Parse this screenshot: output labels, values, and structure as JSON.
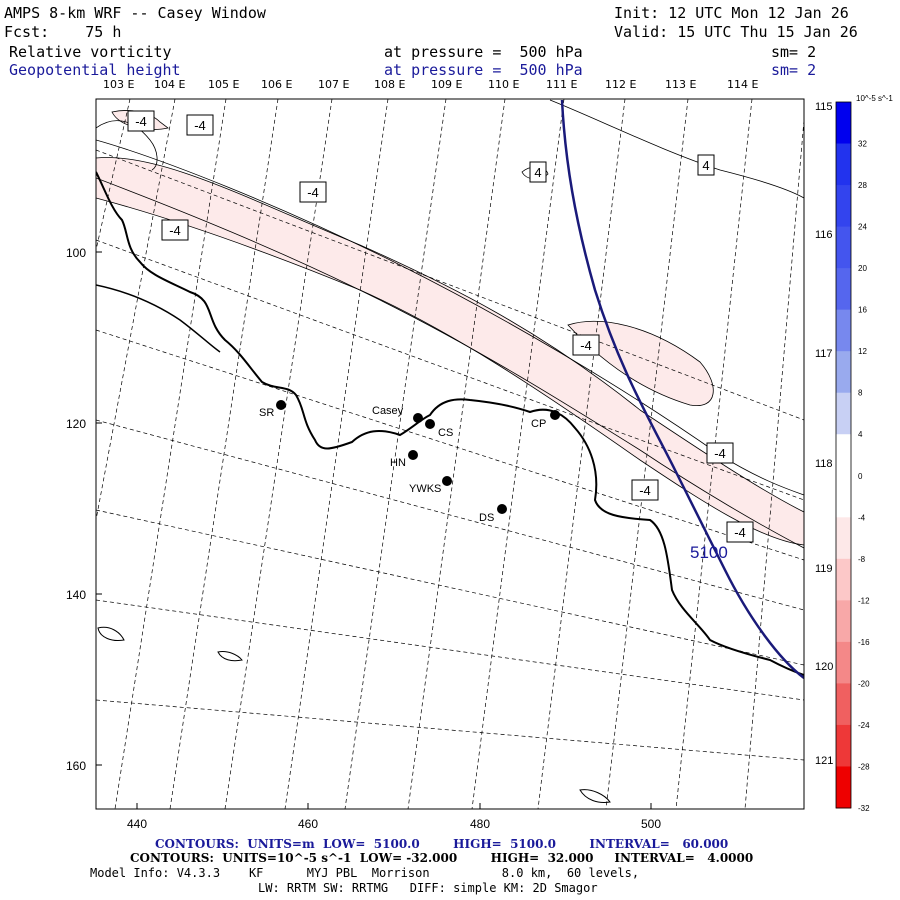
{
  "header": {
    "title": "AMPS 8-km WRF -- Casey Window",
    "init": "Init: 12 UTC Mon 12 Jan 26",
    "forecast": "Fcst:    75 h",
    "valid": "Valid: 15 UTC Thu 15 Jan 26",
    "field1": {
      "name": "Relative vorticity",
      "level": "at pressure =  500 hPa",
      "sm": "sm= 2"
    },
    "field2": {
      "name": "Geopotential height",
      "level": "at pressure =  500 hPa",
      "sm": "sm= 2"
    }
  },
  "top_longitudes": [
    "103 E",
    "104 E",
    "105 E",
    "106 E",
    "107 E",
    "108 E",
    "109 E",
    "110 E",
    "111 E",
    "112 E",
    "113 E",
    "114 E"
  ],
  "right_longitudes": [
    "115 E",
    "116 E",
    "117 E",
    "118 E",
    "119 E",
    "120 E",
    "121 E"
  ],
  "x_ticks": [
    "440",
    "460",
    "480",
    "500"
  ],
  "y_ticks": [
    "100",
    "120",
    "140",
    "160"
  ],
  "stations": [
    {
      "id": "SR",
      "label": "SR"
    },
    {
      "id": "Casey",
      "label": "Casey"
    },
    {
      "id": "CS",
      "label": "CS"
    },
    {
      "id": "HN",
      "label": "HN"
    },
    {
      "id": "YWKS",
      "label": "YWKS"
    },
    {
      "id": "DS",
      "label": "DS"
    },
    {
      "id": "CP",
      "label": "CP"
    }
  ],
  "vorticity_labels": [
    "-4",
    "-4",
    "-4",
    "-4",
    "-4",
    "-4",
    "-4",
    "-4",
    "4",
    "4"
  ],
  "height_label": "5100",
  "colorbar": {
    "unit": "10^-5 s^-1",
    "ticks": [
      "32",
      "28",
      "24",
      "20",
      "16",
      "12",
      "8",
      "4",
      "0",
      "-4",
      "-8",
      "-12",
      "-16",
      "-20",
      "-24",
      "-28",
      "-32"
    ],
    "colors": [
      "#0000ee",
      "#2233ee",
      "#3344ee",
      "#4455ee",
      "#5566ee",
      "#7788ee",
      "#99aaee",
      "#c8d0f4",
      "#ffffff",
      "#ffffff",
      "#fde8e8",
      "#fcc8c8",
      "#f8a8a8",
      "#f48888",
      "#f06060",
      "#ee3838",
      "#ee0000"
    ]
  },
  "footer": {
    "line1": "CONTOURS:  UNITS=m  LOW=  5100.0        HIGH=  5100.0        INTERVAL=   60.000",
    "line2": "CONTOURS:  UNITS=10^-5 s^-1  LOW= -32.000        HIGH=  32.000     INTERVAL=   4.0000",
    "line3": "Model Info: V4.3.3    KF      MYJ PBL  Morrison          8.0 km,  60 levels,",
    "line4": "LW: RRTM SW: RRTMG   DIFF: simple KM: 2D Smagor"
  }
}
